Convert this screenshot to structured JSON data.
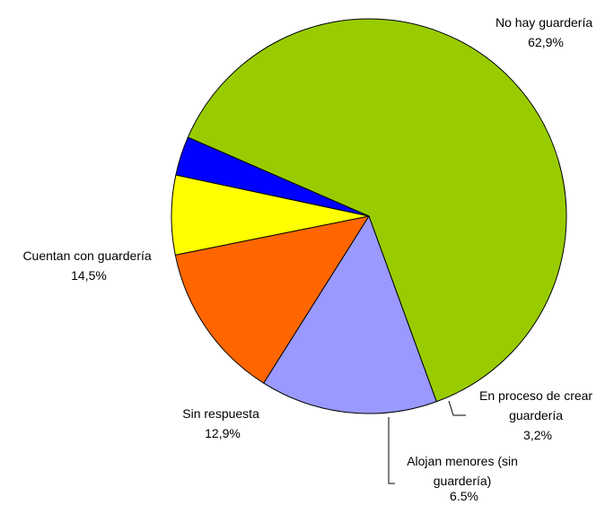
{
  "chart_data": {
    "type": "pie",
    "title": "",
    "slices": [
      {
        "name": "No hay guardería",
        "value": 62.9,
        "value_label": "62,9%",
        "color": "#99cc00"
      },
      {
        "name": "En proceso de crear guardería",
        "value": 3.2,
        "value_label": "3,2%",
        "color": "#0000ff"
      },
      {
        "name": "Alojan menores (sin guardería)",
        "value": 6.5,
        "value_label": "6.5%",
        "color": "#ffff00"
      },
      {
        "name": "Sin respuesta",
        "value": 12.9,
        "value_label": "12,9%",
        "color": "#ff6600"
      },
      {
        "name": "Cuentan con guardería",
        "value": 14.5,
        "value_label": "14,5%",
        "color": "#9999ff"
      }
    ],
    "labels": [
      {
        "lines": [
          "No hay guardería",
          "62,9%"
        ]
      },
      {
        "lines": [
          "En proceso de crear",
          "guardería",
          "3,2%"
        ]
      },
      {
        "lines": [
          "Alojan menores (sin",
          "guardería)",
          "6.5%"
        ]
      },
      {
        "lines": [
          "Sin respuesta",
          "12,9%"
        ]
      },
      {
        "lines": [
          "Cuentan con guardería",
          "14,5%"
        ]
      }
    ],
    "legend": "none"
  }
}
